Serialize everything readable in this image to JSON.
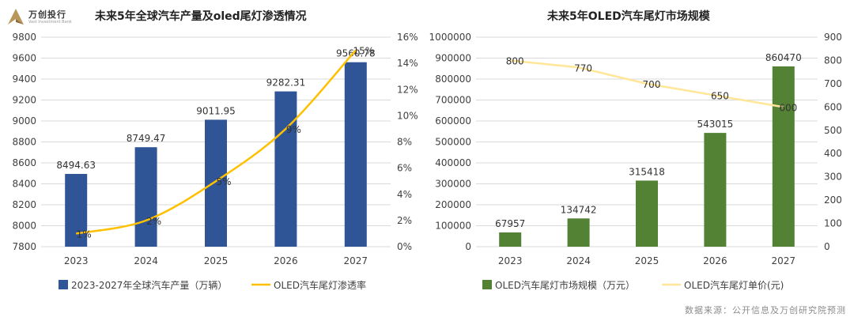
{
  "logo": {
    "name": "万创投行",
    "sub": "Vast Investment Bank"
  },
  "source_note": "数据来源：公开信息及万创研究院预测",
  "chart_data": [
    {
      "type": "bar",
      "title": "未来5年全球汽车产量及oled尾灯渗透情况",
      "categories": [
        "2023",
        "2024",
        "2025",
        "2026",
        "2027"
      ],
      "y_ticks": [
        "7800",
        "8000",
        "8200",
        "8400",
        "8600",
        "8800",
        "9000",
        "9200",
        "9400",
        "9600",
        "9800"
      ],
      "y2_ticks": [
        "0%",
        "2%",
        "4%",
        "6%",
        "8%",
        "10%",
        "12%",
        "14%",
        "16%"
      ],
      "ylim": [
        7800,
        9800
      ],
      "y2lim": [
        0,
        16
      ],
      "series": [
        {
          "name": "2023-2027年全球汽车产量（万辆）",
          "kind": "bar",
          "axis": "left",
          "color": "#2F5597",
          "values": [
            8494.63,
            8749.47,
            9011.95,
            9282.31,
            9560.78
          ],
          "labels": [
            "8494.63",
            "8749.47",
            "9011.95",
            "9282.31",
            "9560.78"
          ]
        },
        {
          "name": "OLED汽车尾灯渗透率",
          "kind": "line",
          "axis": "right",
          "color": "#FFC000",
          "values": [
            1,
            2,
            5,
            9,
            15
          ],
          "labels": [
            "1%",
            "2%",
            "5%",
            "9%",
            "15%"
          ]
        }
      ]
    },
    {
      "type": "bar",
      "title": "未来5年OLED汽车尾灯市场规模",
      "categories": [
        "2023",
        "2024",
        "2025",
        "2026",
        "2027"
      ],
      "y_ticks": [
        "0",
        "100000",
        "200000",
        "300000",
        "400000",
        "500000",
        "600000",
        "700000",
        "800000",
        "900000",
        "1000000"
      ],
      "y2_ticks": [
        "0",
        "100",
        "200",
        "300",
        "400",
        "500",
        "600",
        "700",
        "800",
        "900"
      ],
      "ylim": [
        0,
        1000000
      ],
      "y2lim": [
        0,
        900
      ],
      "series": [
        {
          "name": "OLED汽车尾灯市场规模（万元）",
          "kind": "bar",
          "axis": "left",
          "color": "#548235",
          "values": [
            67957,
            134742,
            315418,
            543015,
            860470
          ],
          "labels": [
            "67957",
            "134742",
            "315418",
            "543015",
            "860470"
          ]
        },
        {
          "name": "OLED汽车尾灯单价(元)",
          "kind": "line",
          "axis": "right",
          "color": "#FFE699",
          "values": [
            800,
            770,
            700,
            650,
            600
          ],
          "labels": [
            "800",
            "770",
            "700",
            "650",
            "600"
          ]
        }
      ]
    }
  ]
}
